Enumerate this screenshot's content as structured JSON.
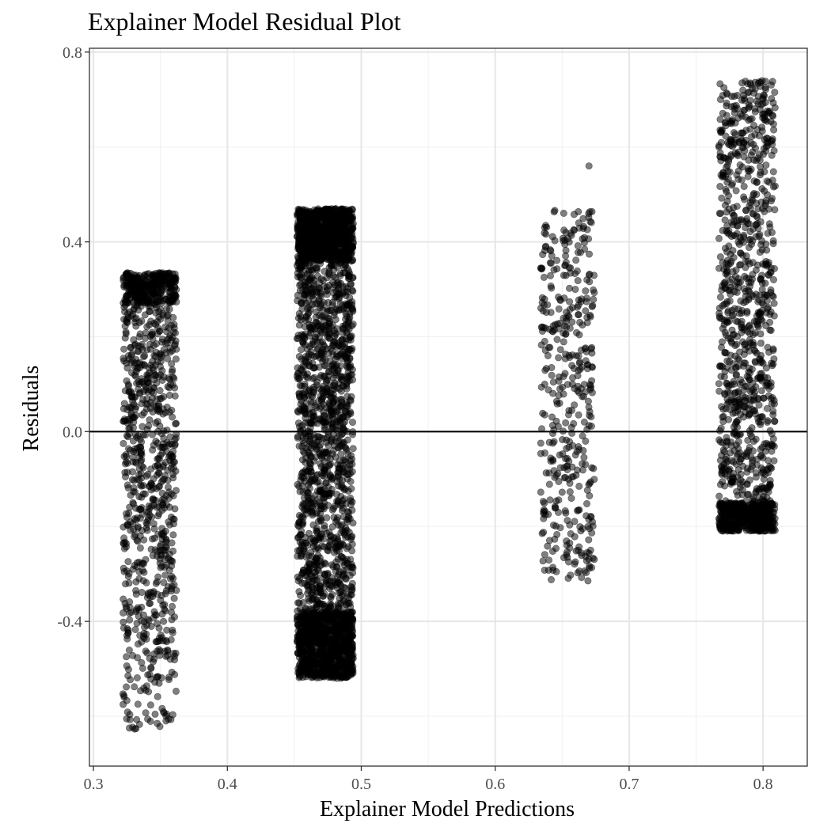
{
  "chart_data": {
    "type": "scatter",
    "title": "Explainer Model Residual Plot",
    "xlabel": "Explainer Model Predictions",
    "ylabel": "Residuals",
    "xlim": [
      0.297,
      0.833
    ],
    "ylim": [
      -0.705,
      0.808
    ],
    "x_ticks": [
      "0.3",
      "0.4",
      "0.5",
      "0.6",
      "0.7",
      "0.8"
    ],
    "y_ticks": [
      "-0.4",
      "0.0",
      "0.4",
      "0.8"
    ],
    "grid": true,
    "reference_line_y": 0.0,
    "point_color": "#000000",
    "point_opacity": 0.5,
    "clusters": [
      {
        "x_center": 0.342,
        "x_jitter": 0.02,
        "y_min": -0.63,
        "y_max": 0.335,
        "n": 1100,
        "dense_above": 0.27
      },
      {
        "x_center": 0.473,
        "x_jitter": 0.021,
        "y_min": -0.52,
        "y_max": 0.47,
        "n": 3200,
        "dense_above": 0.36,
        "dense_below": -0.38
      },
      {
        "x_center": 0.654,
        "x_jitter": 0.02,
        "y_min": -0.32,
        "y_max": 0.47,
        "n": 420,
        "outliers": [
          [
            0.67,
            0.56
          ]
        ]
      },
      {
        "x_center": 0.788,
        "x_jitter": 0.021,
        "y_min": -0.21,
        "y_max": 0.74,
        "n": 1400,
        "dense_below": -0.15
      }
    ]
  }
}
